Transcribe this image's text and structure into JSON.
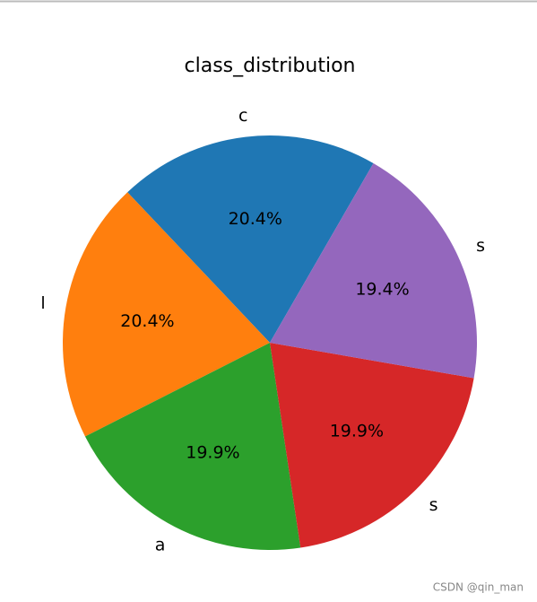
{
  "chart_data": {
    "type": "pie",
    "title": "class_distribution",
    "categories": [
      "c",
      "l",
      "a",
      "s",
      "s"
    ],
    "values": [
      20.4,
      20.4,
      19.9,
      19.9,
      19.4
    ],
    "value_labels": [
      "20.4%",
      "20.4%",
      "19.9%",
      "19.9%",
      "19.4%"
    ],
    "colors": [
      "#1f77b4",
      "#ff7f0e",
      "#2ca02c",
      "#d62728",
      "#9467bd"
    ]
  },
  "watermark": "CSDN @qin_man"
}
